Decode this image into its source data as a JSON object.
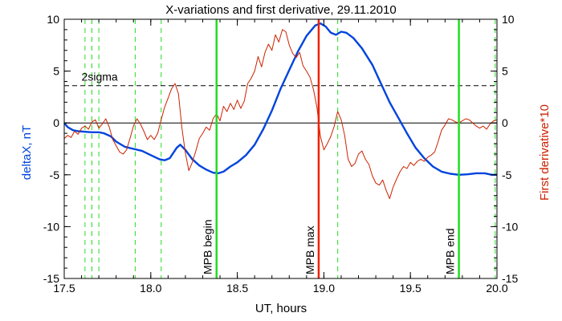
{
  "chart_data": {
    "type": "line",
    "title": "X-variations and first derivative, 29.11.2010",
    "xlabel": "UT, hours",
    "ylabel_left": "deltaX, nT",
    "ylabel_right": "First derivative*10",
    "xlim": [
      17.5,
      20.0
    ],
    "ylim_left": [
      -15,
      10
    ],
    "ylim_right": [
      -15,
      10
    ],
    "x_ticks": [
      "17.5",
      "18.0",
      "18.5",
      "19.0",
      "19.5",
      "20.0"
    ],
    "y_ticks_left": [
      "10",
      "5",
      "0",
      "-5",
      "-10",
      "-15"
    ],
    "y_ticks_right": [
      "10",
      "5",
      "0",
      "-5",
      "-10",
      "-15"
    ],
    "grid": false,
    "colors": {
      "deltaX": "#0044dd",
      "derivative": "#cc2200",
      "mpb_begin_end": "#22dd22",
      "mpb_max": "#ee2200",
      "dashed_markers": "#22dd22",
      "sigma": "#000000",
      "zero": "#000000"
    },
    "sigma": {
      "label": "2sigma",
      "value": 3.6
    },
    "zero_line": 0,
    "markers": {
      "solid": [
        {
          "label": "MPB begin",
          "x": 18.38
        },
        {
          "label": "MPB max",
          "x": 18.97
        },
        {
          "label": "MPB end",
          "x": 19.78
        }
      ],
      "dashed": [
        17.62,
        17.66,
        17.7,
        17.91,
        18.06,
        19.08,
        19.99
      ]
    },
    "series": [
      {
        "axis": "left",
        "points": [
          [
            17.5,
            0.0
          ],
          [
            17.52,
            -0.4
          ],
          [
            17.55,
            -0.7
          ],
          [
            17.58,
            -0.8
          ],
          [
            17.62,
            -0.85
          ],
          [
            17.66,
            -0.9
          ],
          [
            17.7,
            -0.9
          ],
          [
            17.73,
            -1.0
          ],
          [
            17.77,
            -1.3
          ],
          [
            17.8,
            -1.8
          ],
          [
            17.85,
            -2.3
          ],
          [
            17.9,
            -2.5
          ],
          [
            17.95,
            -2.7
          ],
          [
            18.0,
            -3.1
          ],
          [
            18.05,
            -3.5
          ],
          [
            18.08,
            -3.6
          ],
          [
            18.11,
            -3.4
          ],
          [
            18.15,
            -2.4
          ],
          [
            18.17,
            -2.1
          ],
          [
            18.2,
            -2.6
          ],
          [
            18.24,
            -3.5
          ],
          [
            18.28,
            -4.1
          ],
          [
            18.32,
            -4.5
          ],
          [
            18.36,
            -4.8
          ],
          [
            18.39,
            -4.85
          ],
          [
            18.42,
            -4.7
          ],
          [
            18.46,
            -4.2
          ],
          [
            18.5,
            -3.8
          ],
          [
            18.55,
            -3.1
          ],
          [
            18.6,
            -2.1
          ],
          [
            18.65,
            -0.6
          ],
          [
            18.7,
            1.2
          ],
          [
            18.75,
            3.3
          ],
          [
            18.8,
            5.1
          ],
          [
            18.85,
            6.9
          ],
          [
            18.9,
            8.4
          ],
          [
            18.95,
            9.4
          ],
          [
            18.98,
            9.6
          ],
          [
            19.01,
            9.3
          ],
          [
            19.04,
            8.7
          ],
          [
            19.07,
            8.5
          ],
          [
            19.1,
            8.8
          ],
          [
            19.13,
            8.7
          ],
          [
            19.17,
            8.2
          ],
          [
            19.22,
            7.2
          ],
          [
            19.28,
            5.6
          ],
          [
            19.33,
            3.8
          ],
          [
            19.38,
            2.0
          ],
          [
            19.43,
            0.5
          ],
          [
            19.48,
            -1.0
          ],
          [
            19.53,
            -2.4
          ],
          [
            19.58,
            -3.4
          ],
          [
            19.63,
            -4.2
          ],
          [
            19.68,
            -4.7
          ],
          [
            19.73,
            -4.9
          ],
          [
            19.78,
            -5.0
          ],
          [
            19.83,
            -4.95
          ],
          [
            19.88,
            -4.85
          ],
          [
            19.93,
            -4.85
          ],
          [
            19.97,
            -5.0
          ],
          [
            20.0,
            -5.0
          ]
        ]
      },
      {
        "axis": "right",
        "points": [
          [
            17.5,
            -1.5
          ],
          [
            17.52,
            -1.2
          ],
          [
            17.54,
            -1.4
          ],
          [
            17.56,
            -0.8
          ],
          [
            17.58,
            -1.1
          ],
          [
            17.6,
            -0.5
          ],
          [
            17.62,
            -0.3
          ],
          [
            17.64,
            -0.6
          ],
          [
            17.66,
            0.1
          ],
          [
            17.68,
            0.3
          ],
          [
            17.7,
            -0.5
          ],
          [
            17.72,
            -0.1
          ],
          [
            17.74,
            0.4
          ],
          [
            17.76,
            -0.4
          ],
          [
            17.78,
            -1.6
          ],
          [
            17.8,
            -2.2
          ],
          [
            17.82,
            -2.8
          ],
          [
            17.84,
            -3.0
          ],
          [
            17.86,
            -2.6
          ],
          [
            17.88,
            -1.5
          ],
          [
            17.9,
            -0.3
          ],
          [
            17.92,
            0.4
          ],
          [
            17.94,
            -0.1
          ],
          [
            17.96,
            -0.8
          ],
          [
            17.98,
            -1.6
          ],
          [
            18.0,
            -1.2
          ],
          [
            18.02,
            -1.6
          ],
          [
            18.04,
            -1.0
          ],
          [
            18.06,
            0.3
          ],
          [
            18.08,
            1.5
          ],
          [
            18.1,
            2.4
          ],
          [
            18.12,
            3.3
          ],
          [
            18.14,
            3.8
          ],
          [
            18.16,
            2.8
          ],
          [
            18.18,
            -0.5
          ],
          [
            18.2,
            -2.9
          ],
          [
            18.22,
            -4.6
          ],
          [
            18.24,
            -3.8
          ],
          [
            18.26,
            -2.7
          ],
          [
            18.28,
            -1.5
          ],
          [
            18.3,
            -1.0
          ],
          [
            18.32,
            -0.4
          ],
          [
            18.34,
            -0.7
          ],
          [
            18.36,
            0.4
          ],
          [
            18.38,
            0.9
          ],
          [
            18.4,
            0.2
          ],
          [
            18.42,
            1.6
          ],
          [
            18.44,
            1.1
          ],
          [
            18.46,
            1.9
          ],
          [
            18.48,
            1.3
          ],
          [
            18.5,
            2.2
          ],
          [
            18.52,
            1.4
          ],
          [
            18.54,
            2.1
          ],
          [
            18.56,
            3.8
          ],
          [
            18.58,
            4.3
          ],
          [
            18.6,
            5.0
          ],
          [
            18.62,
            6.4
          ],
          [
            18.64,
            5.4
          ],
          [
            18.66,
            6.8
          ],
          [
            18.68,
            7.6
          ],
          [
            18.7,
            7.0
          ],
          [
            18.72,
            8.5
          ],
          [
            18.74,
            7.8
          ],
          [
            18.76,
            9.0
          ],
          [
            18.78,
            8.8
          ],
          [
            18.8,
            7.5
          ],
          [
            18.82,
            6.7
          ],
          [
            18.84,
            6.3
          ],
          [
            18.86,
            6.8
          ],
          [
            18.88,
            5.5
          ],
          [
            18.9,
            5.0
          ],
          [
            18.92,
            4.4
          ],
          [
            18.94,
            3.2
          ],
          [
            18.96,
            1.5
          ],
          [
            18.98,
            -1.3
          ],
          [
            19.0,
            -2.6
          ],
          [
            19.02,
            -2.0
          ],
          [
            19.04,
            -1.3
          ],
          [
            19.06,
            -0.3
          ],
          [
            19.08,
            1.1
          ],
          [
            19.1,
            0.3
          ],
          [
            19.12,
            -1.2
          ],
          [
            19.14,
            -3.5
          ],
          [
            19.16,
            -4.2
          ],
          [
            19.18,
            -3.9
          ],
          [
            19.2,
            -3.0
          ],
          [
            19.22,
            -2.7
          ],
          [
            19.24,
            -3.5
          ],
          [
            19.26,
            -4.0
          ],
          [
            19.28,
            -5.1
          ],
          [
            19.3,
            -5.8
          ],
          [
            19.32,
            -6.0
          ],
          [
            19.34,
            -5.5
          ],
          [
            19.36,
            -6.5
          ],
          [
            19.38,
            -7.3
          ],
          [
            19.4,
            -6.2
          ],
          [
            19.42,
            -5.4
          ],
          [
            19.44,
            -4.7
          ],
          [
            19.46,
            -4.2
          ],
          [
            19.48,
            -4.4
          ],
          [
            19.5,
            -3.8
          ],
          [
            19.52,
            -4.1
          ],
          [
            19.54,
            -3.7
          ],
          [
            19.56,
            -3.5
          ],
          [
            19.58,
            -3.7
          ],
          [
            19.6,
            -3.3
          ],
          [
            19.62,
            -3.1
          ],
          [
            19.64,
            -2.8
          ],
          [
            19.66,
            -1.8
          ],
          [
            19.68,
            -0.7
          ],
          [
            19.7,
            -0.2
          ],
          [
            19.72,
            0.4
          ],
          [
            19.74,
            0.3
          ],
          [
            19.76,
            0.1
          ],
          [
            19.78,
            0.0
          ],
          [
            19.8,
            0.2
          ],
          [
            19.82,
            0.4
          ],
          [
            19.84,
            0.3
          ],
          [
            19.86,
            0.0
          ],
          [
            19.88,
            -0.3
          ],
          [
            19.9,
            -0.5
          ],
          [
            19.92,
            -0.3
          ],
          [
            19.94,
            -0.6
          ],
          [
            19.96,
            -0.1
          ],
          [
            19.98,
            0.2
          ],
          [
            20.0,
            0.3
          ]
        ]
      }
    ]
  }
}
